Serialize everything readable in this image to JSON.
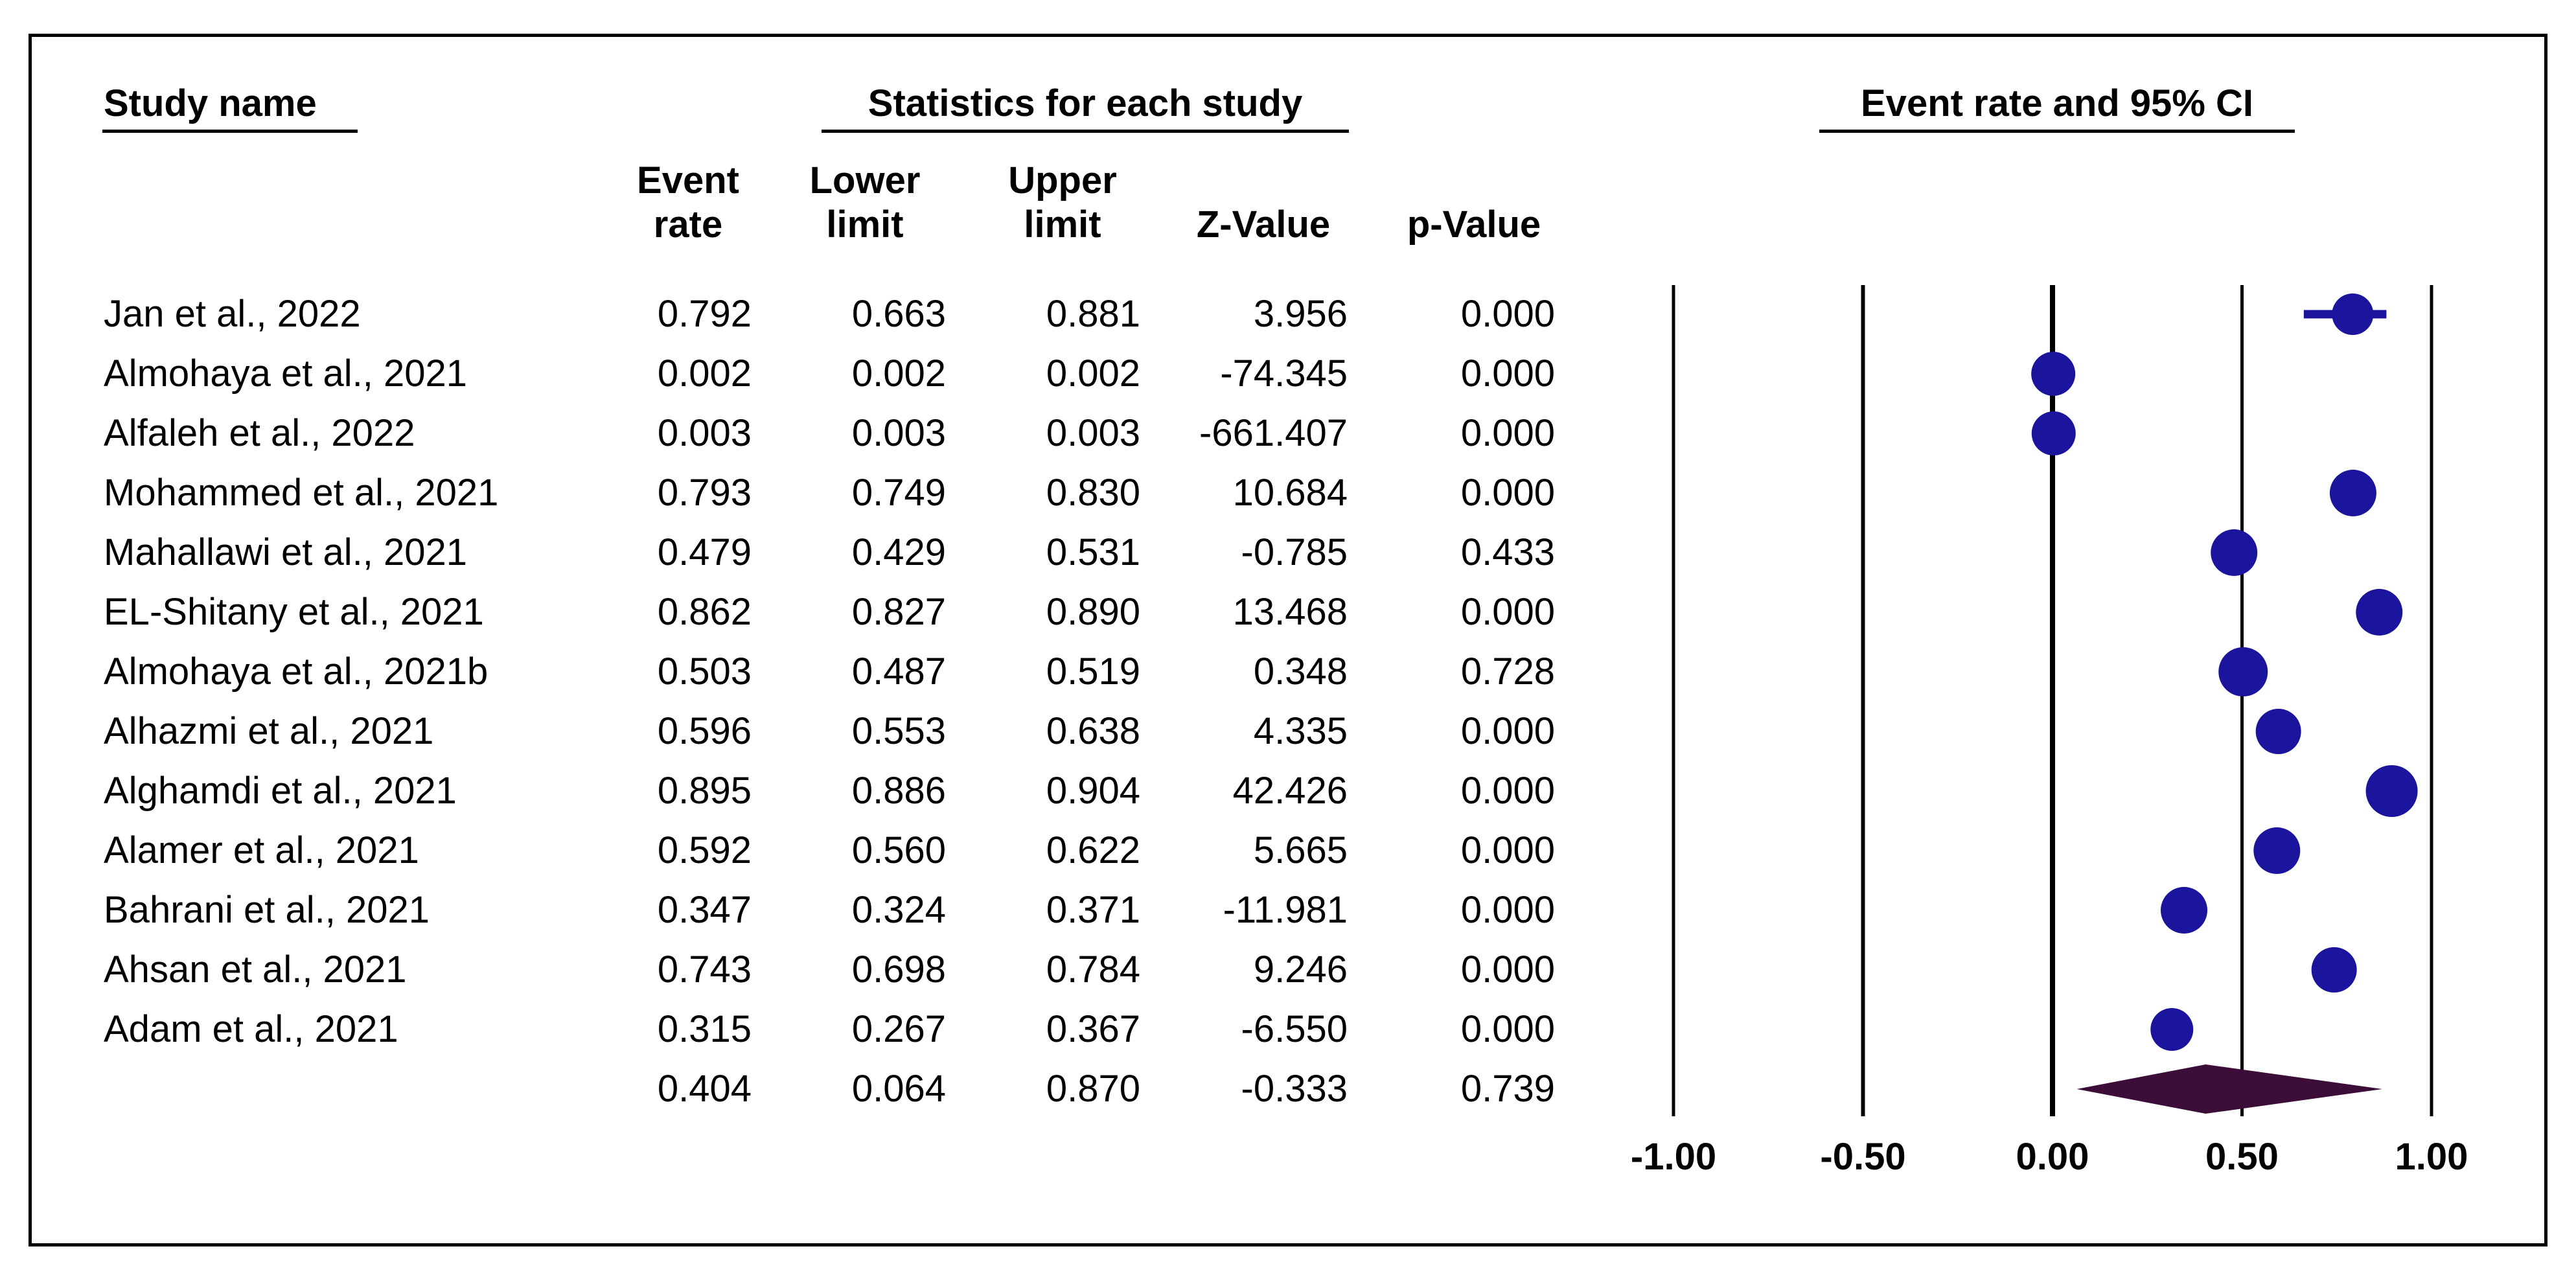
{
  "table": {
    "study_col_header": "Study name",
    "stats_group_header": "Statistics for each study",
    "plot_group_header": "Event rate and 95% CI",
    "col_headers": {
      "event_line1": "Event",
      "event_line2": "rate",
      "lower_line1": "Lower",
      "lower_line2": "limit",
      "upper_line1": "Upper",
      "upper_line2": "limit",
      "z": "Z-Value",
      "p": "p-Value"
    }
  },
  "colors": {
    "marker_blue": "#1b149c",
    "diamond_purple": "#3b0d38",
    "line_black": "#000000",
    "background": "#ffffff"
  },
  "chart_data": {
    "type": "scatter",
    "subtype": "forest-plot-meta-analysis",
    "title": "Event rate and 95% CI",
    "xlabel": "",
    "ylabel": "",
    "grid": "vertical-gridlines-at-ticks",
    "legend_position": "none",
    "x_axis": {
      "tick_labels": [
        "-1.00",
        "-0.50",
        "0.00",
        "0.50",
        "1.00"
      ],
      "tick_values": [
        -1.0,
        -0.5,
        0.0,
        0.5,
        1.0
      ],
      "range_shown": [
        -1.35,
        1.35
      ]
    },
    "studies": [
      {
        "name": "Jan et al., 2022",
        "event_rate": 0.792,
        "lower_limit": 0.663,
        "upper_limit": 0.881,
        "z_value": 3.956,
        "p_value": 0.0,
        "display": [
          "0.792",
          "0.663",
          "0.881",
          "3.956",
          "0.000"
        ],
        "marker_size": 32
      },
      {
        "name": "Almohaya et al., 2021",
        "event_rate": 0.002,
        "lower_limit": 0.002,
        "upper_limit": 0.002,
        "z_value": -74.345,
        "p_value": 0.0,
        "display": [
          "0.002",
          "0.002",
          "0.002",
          "-74.345",
          "0.000"
        ],
        "marker_size": 34
      },
      {
        "name": "Alfaleh et al., 2022",
        "event_rate": 0.003,
        "lower_limit": 0.003,
        "upper_limit": 0.003,
        "z_value": -661.407,
        "p_value": 0.0,
        "display": [
          "0.003",
          "0.003",
          "0.003",
          "-661.407",
          "0.000"
        ],
        "marker_size": 34
      },
      {
        "name": "Mohammed et al., 2021",
        "event_rate": 0.793,
        "lower_limit": 0.749,
        "upper_limit": 0.83,
        "z_value": 10.684,
        "p_value": 0.0,
        "display": [
          "0.793",
          "0.749",
          "0.830",
          "10.684",
          "0.000"
        ],
        "marker_size": 36
      },
      {
        "name": "Mahallawi et al., 2021",
        "event_rate": 0.479,
        "lower_limit": 0.429,
        "upper_limit": 0.531,
        "z_value": -0.785,
        "p_value": 0.433,
        "display": [
          "0.479",
          "0.429",
          "0.531",
          "-0.785",
          "0.433"
        ],
        "marker_size": 36
      },
      {
        "name": "EL-Shitany et al., 2021",
        "event_rate": 0.862,
        "lower_limit": 0.827,
        "upper_limit": 0.89,
        "z_value": 13.468,
        "p_value": 0.0,
        "display": [
          "0.862",
          "0.827",
          "0.890",
          "13.468",
          "0.000"
        ],
        "marker_size": 36
      },
      {
        "name": "Almohaya et al., 2021b",
        "event_rate": 0.503,
        "lower_limit": 0.487,
        "upper_limit": 0.519,
        "z_value": 0.348,
        "p_value": 0.728,
        "display": [
          "0.503",
          "0.487",
          "0.519",
          "0.348",
          "0.728"
        ],
        "marker_size": 38
      },
      {
        "name": "Alhazmi et al., 2021",
        "event_rate": 0.596,
        "lower_limit": 0.553,
        "upper_limit": 0.638,
        "z_value": 4.335,
        "p_value": 0.0,
        "display": [
          "0.596",
          "0.553",
          "0.638",
          "4.335",
          "0.000"
        ],
        "marker_size": 35
      },
      {
        "name": "Alghamdi et al., 2021",
        "event_rate": 0.895,
        "lower_limit": 0.886,
        "upper_limit": 0.904,
        "z_value": 42.426,
        "p_value": 0.0,
        "display": [
          "0.895",
          "0.886",
          "0.904",
          "42.426",
          "0.000"
        ],
        "marker_size": 40
      },
      {
        "name": "Alamer et al., 2021",
        "event_rate": 0.592,
        "lower_limit": 0.56,
        "upper_limit": 0.622,
        "z_value": 5.665,
        "p_value": 0.0,
        "display": [
          "0.592",
          "0.560",
          "0.622",
          "5.665",
          "0.000"
        ],
        "marker_size": 36
      },
      {
        "name": "Bahrani et al., 2021",
        "event_rate": 0.347,
        "lower_limit": 0.324,
        "upper_limit": 0.371,
        "z_value": -11.981,
        "p_value": 0.0,
        "display": [
          "0.347",
          "0.324",
          "0.371",
          "-11.981",
          "0.000"
        ],
        "marker_size": 36
      },
      {
        "name": "Ahsan et al., 2021",
        "event_rate": 0.743,
        "lower_limit": 0.698,
        "upper_limit": 0.784,
        "z_value": 9.246,
        "p_value": 0.0,
        "display": [
          "0.743",
          "0.698",
          "0.784",
          "9.246",
          "0.000"
        ],
        "marker_size": 35
      },
      {
        "name": "Adam et al., 2021",
        "event_rate": 0.315,
        "lower_limit": 0.267,
        "upper_limit": 0.367,
        "z_value": -6.55,
        "p_value": 0.0,
        "display": [
          "0.315",
          "0.267",
          "0.367",
          "-6.550",
          "0.000"
        ],
        "marker_size": 33
      }
    ],
    "summary": {
      "name": "",
      "event_rate": 0.404,
      "lower_limit": 0.064,
      "upper_limit": 0.87,
      "z_value": -0.333,
      "p_value": 0.739,
      "display": [
        "0.404",
        "0.064",
        "0.870",
        "-0.333",
        "0.739"
      ],
      "marker": "diamond"
    }
  }
}
